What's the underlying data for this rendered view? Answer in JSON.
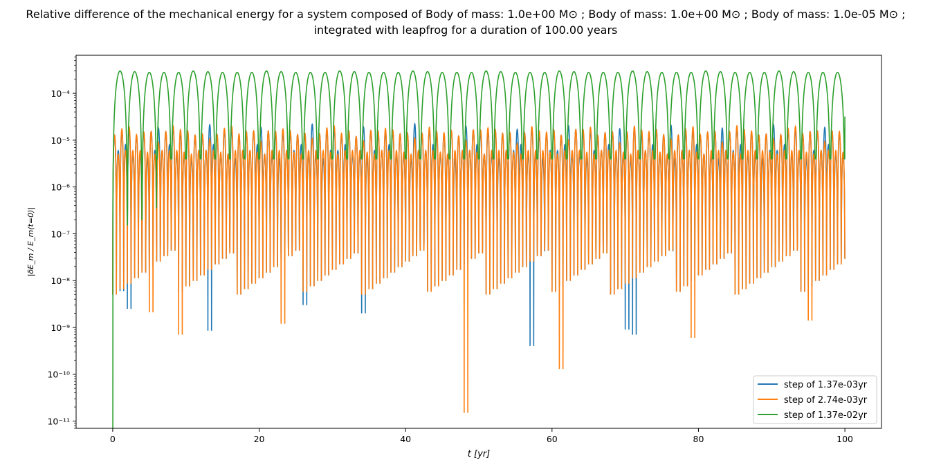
{
  "chart_data": {
    "type": "line",
    "title_line1": "Relative difference of the mechanical energy for a system composed of Body of mass: 1.0e+00 M⊙ ; Body of mass: 1.0e+00 M⊙ ; Body of mass: 1.0e-05 M⊙ ;",
    "title_line2": "integrated with leapfrog for a duration of 100.00 years",
    "xlabel": "t [yr]",
    "ylabel": "|δE_m / E_m(t=0)|",
    "x_ticks": [
      "0",
      "20",
      "40",
      "60",
      "80",
      "100"
    ],
    "x_tick_values": [
      0,
      20,
      40,
      60,
      80,
      100
    ],
    "xlim": [
      -5,
      105
    ],
    "y_scale": "log",
    "ylim": [
      7e-12,
      0.00065
    ],
    "y_ticks": [
      "10⁻¹¹",
      "10⁻¹⁰",
      "10⁻⁹",
      "10⁻⁸",
      "10⁻⁷",
      "10⁻⁶",
      "10⁻⁵",
      "10⁻⁴"
    ],
    "y_tick_values": [
      1e-11,
      1e-10,
      1e-09,
      1e-08,
      1e-07,
      1e-06,
      1e-05,
      0.0001
    ],
    "grid": false,
    "legend_position": "lower-right",
    "series": [
      {
        "name": "step of 1.37e-03yr",
        "color": "#1f77b4",
        "oscillation_period_yr": 1.0,
        "peak_values": [
          1.5e-05,
          1.6e-05,
          1.5e-05,
          1.4e-05,
          1.5e-05,
          1.4e-05,
          2e-05
        ],
        "secondary_peak_values": [
          6e-06,
          8e-06,
          5e-06,
          5e-06,
          4e-06,
          6e-06
        ],
        "trough_values_sample": [
          {
            "x": 0.6,
            "y": 6e-09
          },
          {
            "x": 1.9,
            "y": 2.5e-09
          },
          {
            "x": 13.2,
            "y": 8.5e-10
          },
          {
            "x": 56.6,
            "y": 4e-10
          },
          {
            "x": 71.1,
            "y": 7e-10
          },
          {
            "x": 70.3,
            "y": 9e-10
          },
          {
            "x": 33.7,
            "y": 2e-09
          },
          {
            "x": 25.6,
            "y": 3e-09
          }
        ]
      },
      {
        "name": "step of 2.74e-03yr",
        "color": "#ff7f0e",
        "oscillation_period_yr": 1.0,
        "peak_values": [
          1.5e-05,
          1.8e-05,
          1.8e-05,
          1.5e-05,
          1.5e-05,
          1.4e-05,
          1e-05
        ],
        "secondary_peak_values": [
          5e-06,
          6e-06,
          6e-06,
          6e-06,
          5.5e-06
        ],
        "trough_values_sample": [
          {
            "x": 47.6,
            "y": 1.5e-11
          },
          {
            "x": 60.8,
            "y": 1.3e-10
          },
          {
            "x": 8.9,
            "y": 7e-10
          },
          {
            "x": 22.5,
            "y": 1.2e-09
          },
          {
            "x": 78.8,
            "y": 6e-10
          },
          {
            "x": 94.9,
            "y": 1.4e-09
          },
          {
            "x": 5.0,
            "y": 2.1e-09
          }
        ]
      },
      {
        "name": "step of 1.37e-02yr",
        "color": "#2ca02c",
        "oscillation_period_yr": 2.0,
        "peak_values": [
          0.0003,
          0.00029,
          0.00028,
          0.00028,
          0.00028
        ],
        "trough_values_sample": [
          {
            "x": 0.0,
            "y": 7e-12
          },
          {
            "x": 2.0,
            "y": 1.5e-07
          },
          {
            "x": 4.0,
            "y": 3.5e-07
          },
          {
            "x": 6.0,
            "y": 4e-06
          },
          {
            "x": 100.0,
            "y": 3.2e-05
          }
        ]
      }
    ]
  }
}
